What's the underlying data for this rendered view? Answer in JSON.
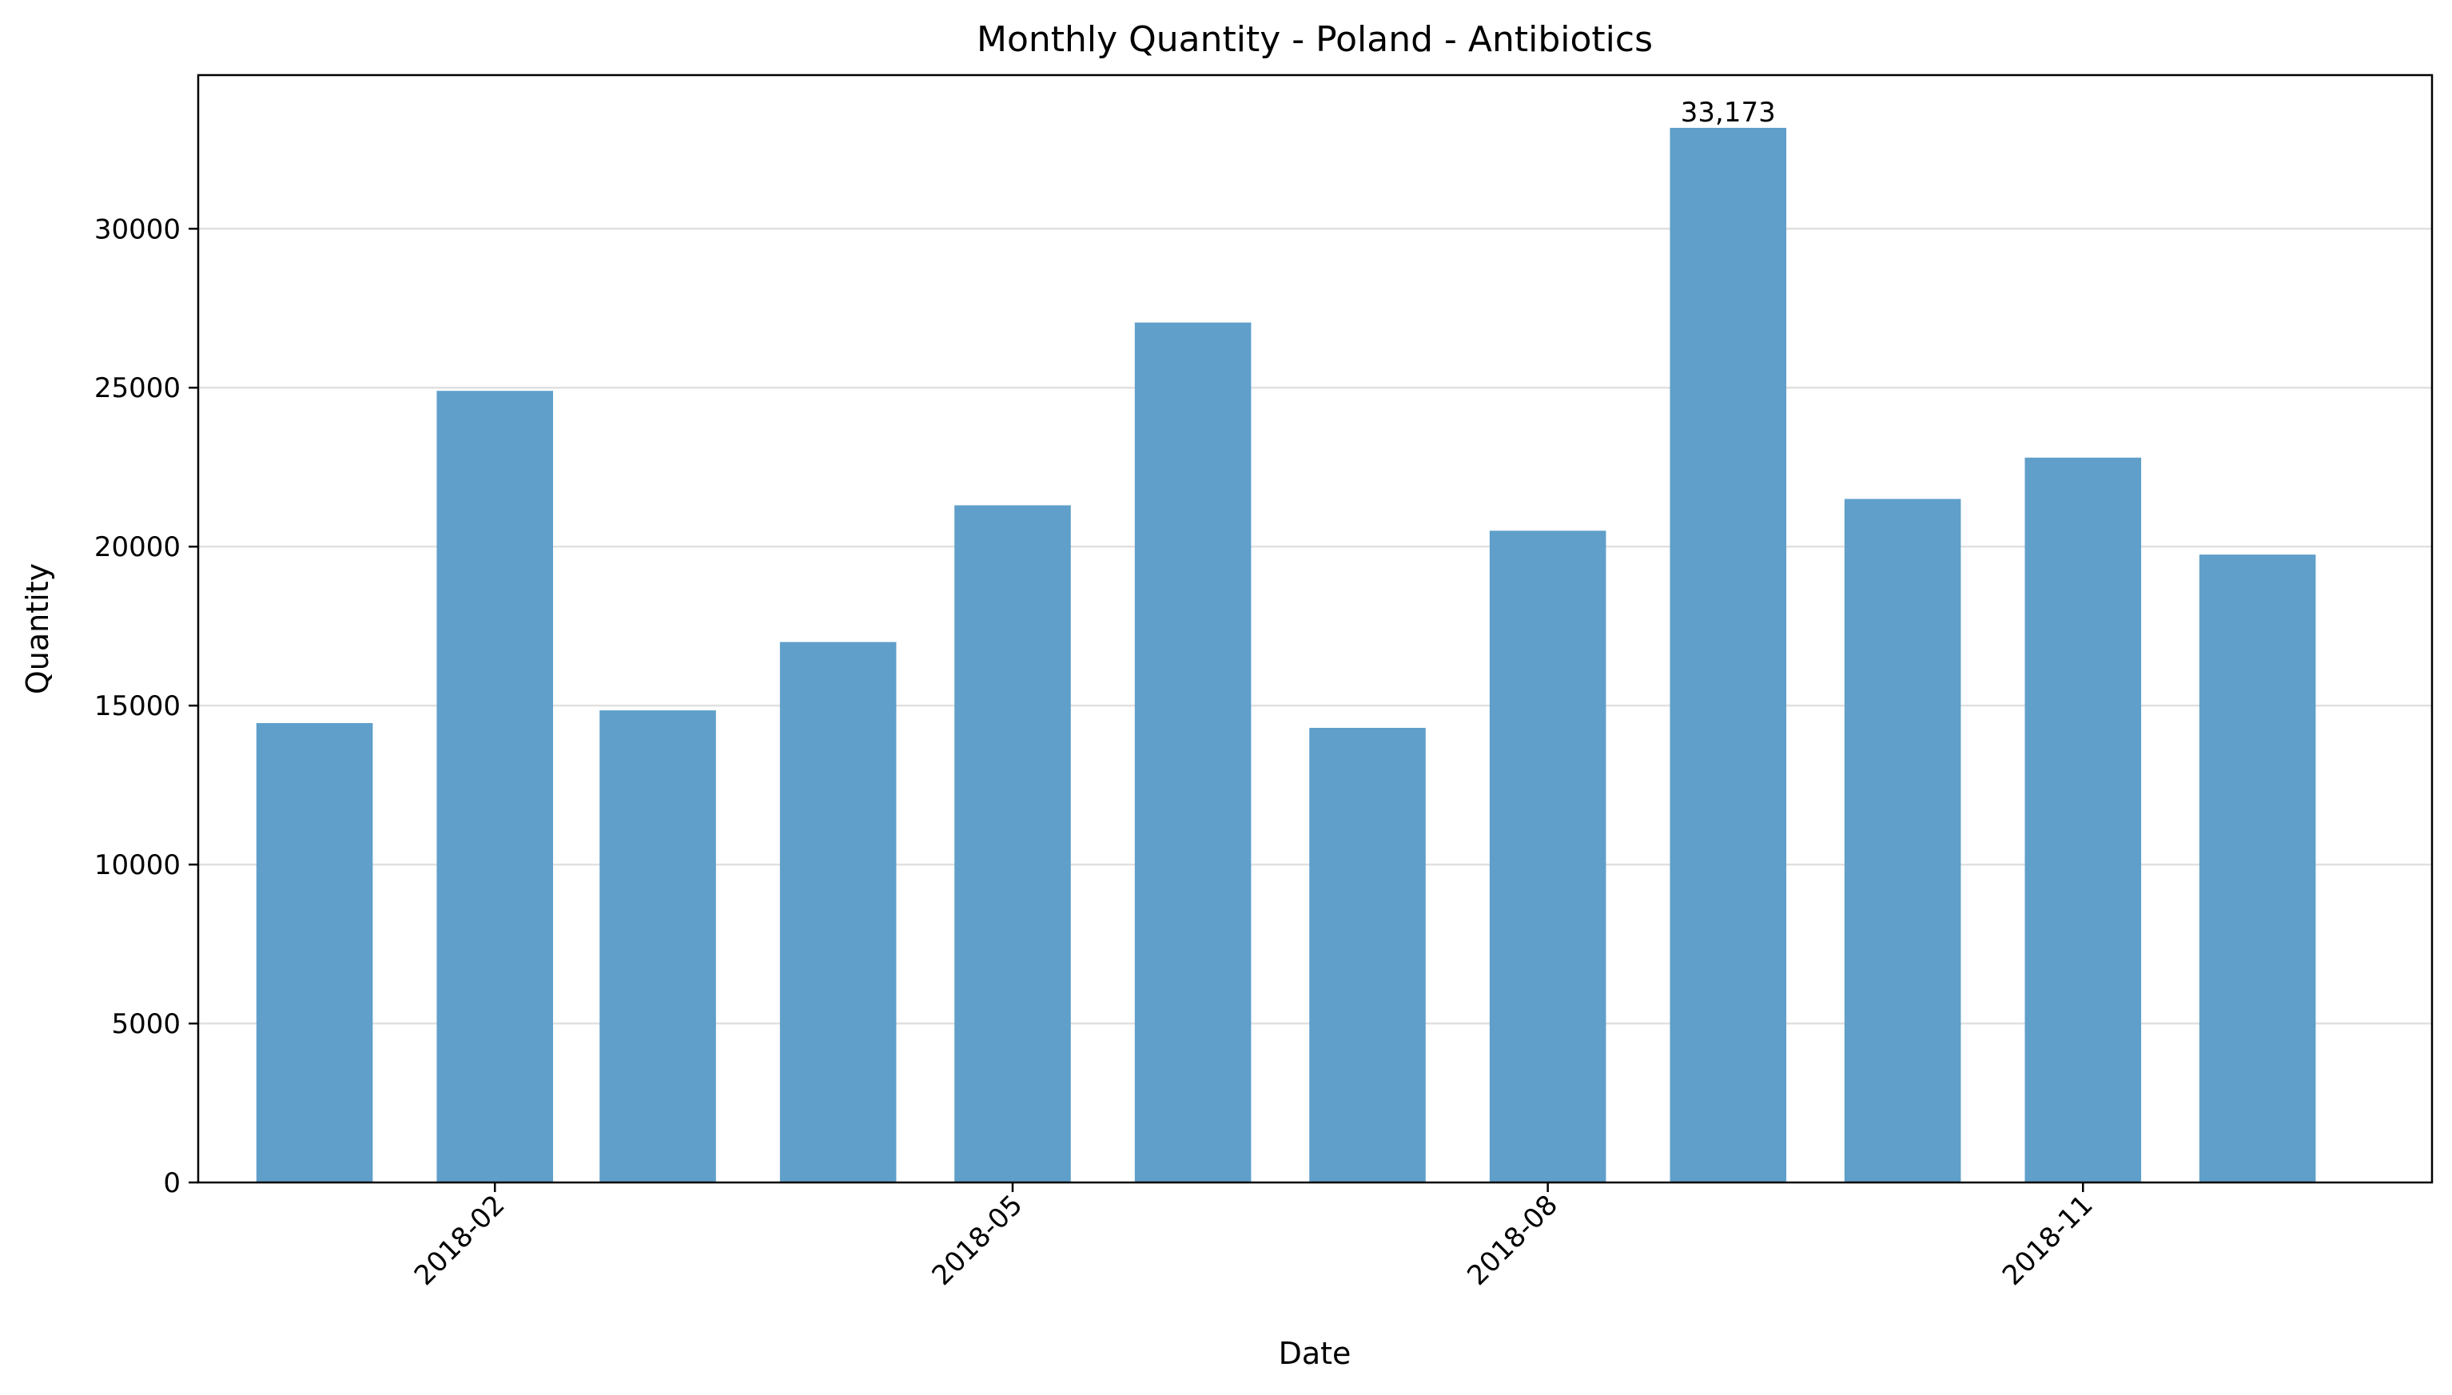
{
  "chart_data": {
    "type": "bar",
    "title": "Monthly Quantity - Poland - Antibiotics",
    "xlabel": "Date",
    "ylabel": "Quantity",
    "x": [
      "2018-01-01",
      "2018-02-01",
      "2018-03-01",
      "2018-04-01",
      "2018-05-01",
      "2018-06-01",
      "2018-07-01",
      "2018-08-01",
      "2018-09-01",
      "2018-10-01",
      "2018-11-01",
      "2018-12-01"
    ],
    "values": [
      14450,
      24900,
      14850,
      17000,
      21300,
      27050,
      14300,
      20500,
      33173,
      21500,
      22800,
      19750
    ],
    "xticks": [
      "2018-02-01",
      "2018-05-01",
      "2018-08-01",
      "2018-11-01"
    ],
    "xtick_labels": [
      "2018-02",
      "2018-05",
      "2018-08",
      "2018-11"
    ],
    "yticks": [
      0,
      5000,
      10000,
      15000,
      20000,
      25000,
      30000
    ],
    "yticklabels": [
      "0",
      "5000",
      "10000",
      "15000",
      "20000",
      "25000",
      "30000"
    ],
    "xlim": [
      "2017-12-12",
      "2018-12-31"
    ],
    "ylim": [
      0,
      34832
    ],
    "annotations": [
      {
        "x": "2018-09-01",
        "value": 33173,
        "label": "33,173"
      }
    ],
    "bar_color": "#5f9fca",
    "grid": "y",
    "legend": "none"
  }
}
